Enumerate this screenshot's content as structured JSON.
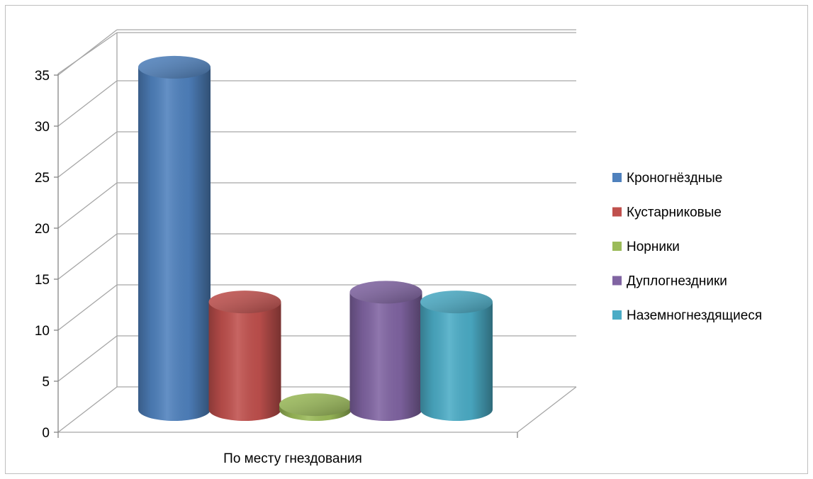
{
  "chart_data": {
    "type": "bar",
    "style": "3d-cylinder",
    "categories": [
      "По месту гнездования"
    ],
    "series": [
      {
        "name": "Кроногнёздные",
        "values": [
          35
        ],
        "color": "#4F81BD"
      },
      {
        "name": "Кустарниковые",
        "values": [
          11
        ],
        "color": "#C0504D"
      },
      {
        "name": "Норники",
        "values": [
          0.5
        ],
        "color": "#9BBB59"
      },
      {
        "name": "Дуплогнездники",
        "values": [
          12
        ],
        "color": "#8064A2"
      },
      {
        "name": "Наземногнездящиеся",
        "values": [
          11
        ],
        "color": "#4BACC6"
      }
    ],
    "y_ticks": [
      "0",
      "5",
      "10",
      "15",
      "20",
      "25",
      "30",
      "35"
    ],
    "ylim": [
      0,
      40
    ],
    "grid": true,
    "legend": "right",
    "title": "",
    "xlabel": "",
    "ylabel": ""
  }
}
